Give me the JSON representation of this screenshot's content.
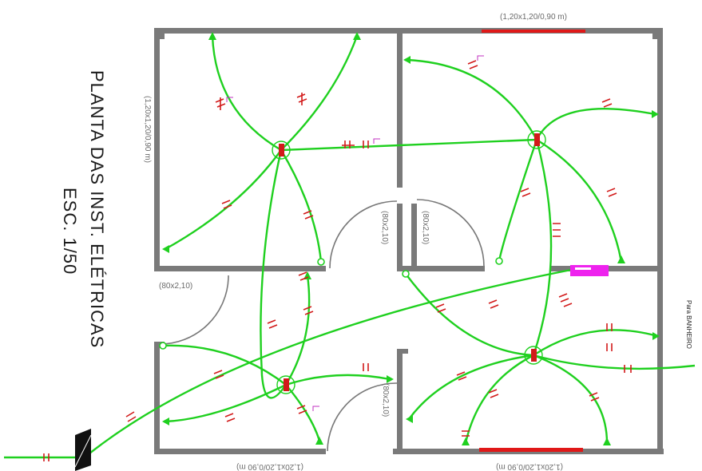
{
  "title": {
    "line1": "PLANTA DAS INST. ELÉTRICAS",
    "line2": "ESC. 1/50"
  },
  "labels": {
    "window_top": "(1,20x1,20/0,90 m)",
    "window_left": "(1,20x1,20/0,90 m)",
    "window_bottom_left": "(1,20x1,20/0,90 m)",
    "window_bottom_right": "(1,20x1,20/0,90 m)",
    "door_center_left": "(80x2,10)",
    "door_center_right": "(80x2,10)",
    "door_left": "(80x2,10)",
    "door_bottom": "(80x2,10)",
    "to_bathroom": "Para BANHEIRO"
  },
  "colors": {
    "wall": "#7a7a7a",
    "wire": "#1fd01f",
    "marker": "#d21a1a",
    "window": "#e01818",
    "panel": "#ee22ee",
    "meter": "#111111"
  }
}
